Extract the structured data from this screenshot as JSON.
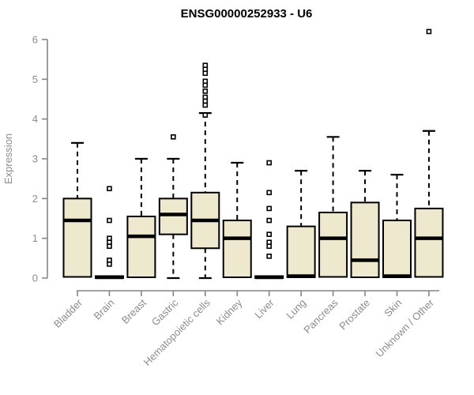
{
  "chart_data": {
    "type": "boxplot",
    "title": "ENSG00000252933 - U6",
    "ylabel": "Expression",
    "xlabel": "",
    "ylim": [
      0,
      6
    ],
    "yticks": [
      0,
      1,
      2,
      3,
      4,
      5,
      6
    ],
    "grid": "off",
    "legend": "none",
    "categories": [
      "Bladder",
      "Brain",
      "Breast",
      "Gastric",
      "Hematopoietic cells",
      "Kidney",
      "Liver",
      "Lung",
      "Pancreas",
      "Prostate",
      "Skin",
      "Unknown / Other"
    ],
    "boxes": [
      {
        "category": "Bladder",
        "min": 0,
        "q1": 0.03,
        "median": 1.45,
        "q3": 2.0,
        "max": 3.4,
        "outliers": []
      },
      {
        "category": "Brain",
        "min": 0,
        "q1": 0.0,
        "median": 0.02,
        "q3": 0.05,
        "max": 0.05,
        "outliers": [
          2.25,
          1.45,
          1.0,
          0.9,
          0.8,
          0.45,
          0.35
        ]
      },
      {
        "category": "Breast",
        "min": 0,
        "q1": 0.02,
        "median": 1.05,
        "q3": 1.55,
        "max": 3.0,
        "outliers": []
      },
      {
        "category": "Gastric",
        "min": 0,
        "q1": 1.1,
        "median": 1.6,
        "q3": 2.0,
        "max": 3.0,
        "outliers": [
          3.55
        ]
      },
      {
        "category": "Hematopoietic cells",
        "min": 0,
        "q1": 0.75,
        "median": 1.45,
        "q3": 2.15,
        "max": 4.15,
        "outliers": [
          5.35,
          5.25,
          5.15,
          4.95,
          4.85,
          4.7,
          4.55,
          4.45,
          4.35,
          4.1
        ]
      },
      {
        "category": "Kidney",
        "min": 0,
        "q1": 0.02,
        "median": 1.0,
        "q3": 1.45,
        "max": 2.9,
        "outliers": []
      },
      {
        "category": "Liver",
        "min": 0,
        "q1": 0.0,
        "median": 0.02,
        "q3": 0.05,
        "max": 0.05,
        "outliers": [
          2.9,
          2.15,
          1.75,
          1.45,
          1.1,
          0.9,
          0.8,
          0.55
        ]
      },
      {
        "category": "Lung",
        "min": 0,
        "q1": 0.02,
        "median": 0.05,
        "q3": 1.3,
        "max": 2.7,
        "outliers": []
      },
      {
        "category": "Pancreas",
        "min": 0,
        "q1": 0.03,
        "median": 1.0,
        "q3": 1.65,
        "max": 3.55,
        "outliers": []
      },
      {
        "category": "Prostate",
        "min": 0,
        "q1": 0.02,
        "median": 0.45,
        "q3": 1.9,
        "max": 2.7,
        "outliers": []
      },
      {
        "category": "Skin",
        "min": 0,
        "q1": 0.02,
        "median": 0.05,
        "q3": 1.45,
        "max": 2.6,
        "outliers": []
      },
      {
        "category": "Unknown / Other",
        "min": 0,
        "q1": 0.03,
        "median": 1.0,
        "q3": 1.75,
        "max": 3.7,
        "outliers": [
          6.2
        ]
      }
    ],
    "colors": {
      "box_fill": "#EDE8CE",
      "box_stroke": "#000000",
      "median": "#000000",
      "whisker": "#000000",
      "axis": "#858585",
      "tick_label": "#8c8c8c",
      "title": "#000000",
      "background": "#ffffff"
    }
  }
}
